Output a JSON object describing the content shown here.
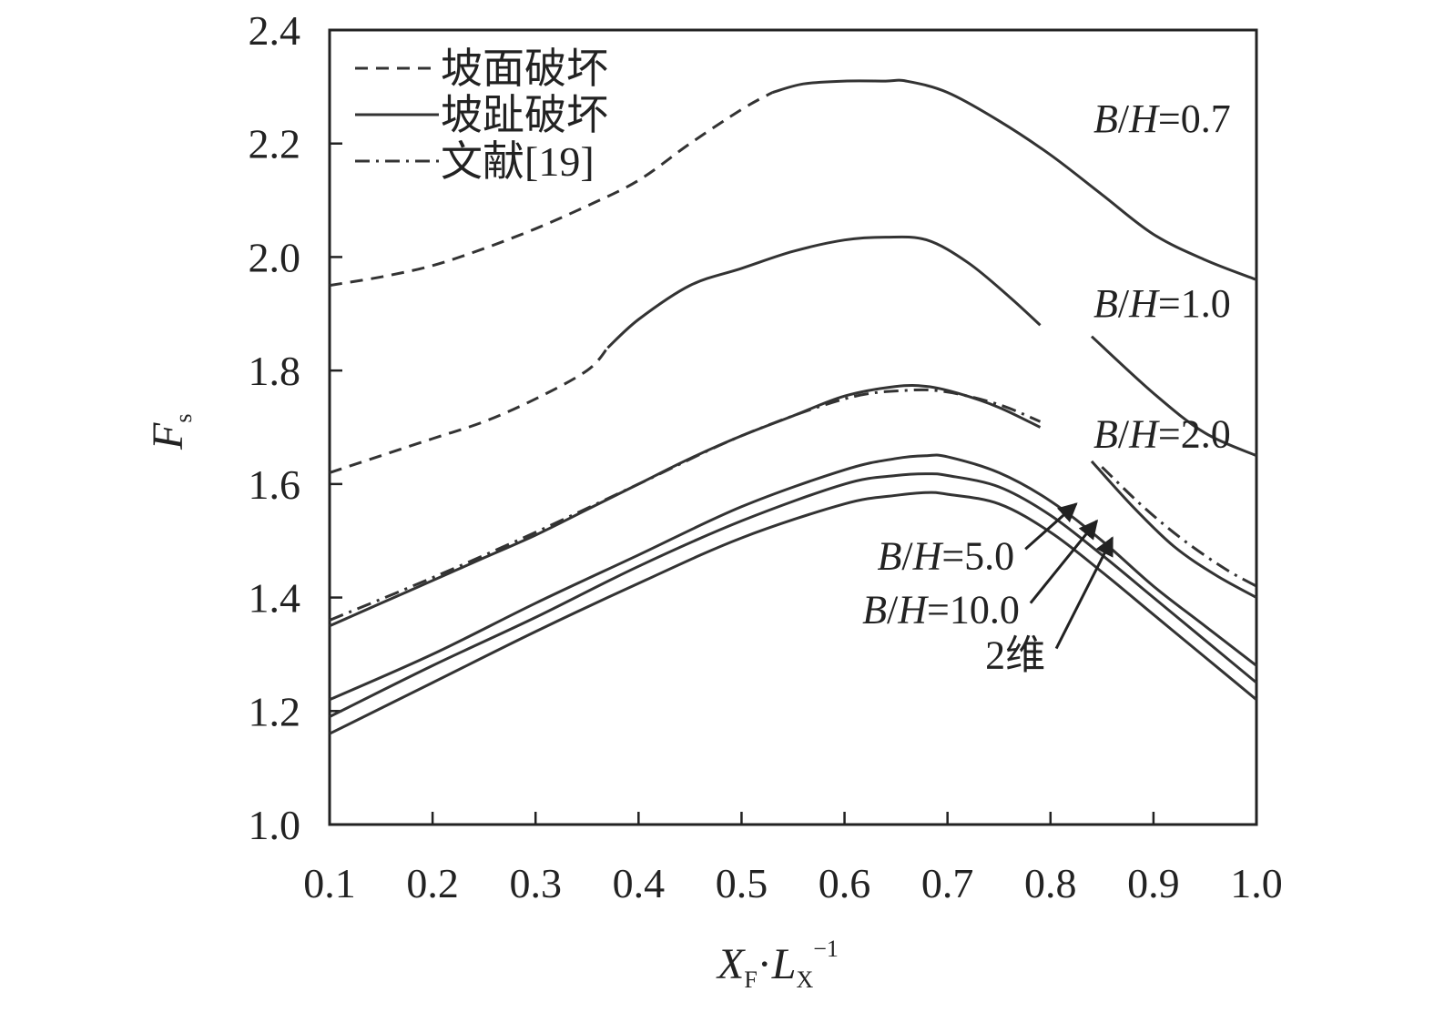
{
  "chart_data": {
    "type": "line",
    "xlabel": {
      "main1": "X",
      "sub1": "F",
      "dot": "·",
      "main2": "L",
      "sub2": "X",
      "sup": "−1"
    },
    "ylabel": {
      "main": "F",
      "sub": "s"
    },
    "xlim": [
      0.1,
      1.0
    ],
    "ylim": [
      1.0,
      2.4
    ],
    "xticks": [
      "0.1",
      "0.2",
      "0.3",
      "0.4",
      "0.5",
      "0.6",
      "0.7",
      "0.8",
      "0.9",
      "1.0"
    ],
    "yticks": [
      "1.0",
      "1.2",
      "1.4",
      "1.6",
      "1.8",
      "2.0",
      "2.2",
      "2.4"
    ],
    "grid": false,
    "legend": {
      "position": "top-left",
      "entries": [
        {
          "label": "坡面破坏",
          "style": "dashed"
        },
        {
          "label": "坡趾破坏",
          "style": "solid"
        },
        {
          "label": "文献[19]",
          "style": "dashdot"
        }
      ]
    },
    "colors": {
      "line": "#333333",
      "axis": "#222222"
    },
    "series": [
      {
        "name": "B/H=0.7",
        "segments": [
          {
            "style": "dashed",
            "x": [
              0.1,
              0.15,
              0.2,
              0.25,
              0.3,
              0.35,
              0.4,
              0.45,
              0.5,
              0.53
            ],
            "y": [
              1.95,
              1.965,
              1.985,
              2.015,
              2.05,
              2.09,
              2.135,
              2.2,
              2.26,
              2.29
            ]
          },
          {
            "style": "solid",
            "x": [
              0.53,
              0.56,
              0.6,
              0.64,
              0.66,
              0.7,
              0.75,
              0.8,
              0.85,
              0.9,
              0.95,
              1.0
            ],
            "y": [
              2.29,
              2.305,
              2.31,
              2.31,
              2.31,
              2.29,
              2.24,
              2.18,
              2.11,
              2.04,
              1.995,
              1.96
            ]
          }
        ]
      },
      {
        "name": "B/H=1.0",
        "segments": [
          {
            "style": "dashed",
            "x": [
              0.1,
              0.15,
              0.2,
              0.25,
              0.3,
              0.35,
              0.37
            ],
            "y": [
              1.62,
              1.65,
              1.68,
              1.71,
              1.75,
              1.8,
              1.84
            ]
          },
          {
            "style": "solid",
            "x": [
              0.37,
              0.4,
              0.45,
              0.5,
              0.55,
              0.6,
              0.64,
              0.68,
              0.72,
              0.76,
              0.79
            ],
            "y": [
              1.84,
              1.89,
              1.95,
              1.98,
              2.01,
              2.03,
              2.035,
              2.03,
              1.99,
              1.93,
              1.88
            ]
          },
          {
            "style": "solid",
            "x": [
              0.84,
              0.9,
              0.95,
              1.0
            ],
            "y": [
              1.86,
              1.76,
              1.69,
              1.65
            ]
          }
        ]
      },
      {
        "name": "B/H=2.0",
        "segments": [
          {
            "style": "solid",
            "x": [
              0.1,
              0.15,
              0.2,
              0.25,
              0.3,
              0.35,
              0.4,
              0.45,
              0.5,
              0.55,
              0.6,
              0.65,
              0.68,
              0.71,
              0.75,
              0.79
            ],
            "y": [
              1.35,
              1.39,
              1.43,
              1.47,
              1.51,
              1.555,
              1.6,
              1.645,
              1.685,
              1.72,
              1.755,
              1.772,
              1.772,
              1.76,
              1.735,
              1.7
            ]
          },
          {
            "style": "solid",
            "x": [
              0.84,
              0.88,
              0.92,
              0.96,
              1.0
            ],
            "y": [
              1.64,
              1.56,
              1.49,
              1.44,
              1.4
            ]
          }
        ]
      },
      {
        "name": "文献[19]",
        "segments": [
          {
            "style": "dashdot",
            "x": [
              0.1,
              0.2,
              0.3,
              0.4,
              0.5,
              0.6,
              0.66,
              0.7,
              0.75,
              0.79
            ],
            "y": [
              1.36,
              1.435,
              1.515,
              1.6,
              1.685,
              1.75,
              1.765,
              1.762,
              1.74,
              1.71
            ]
          },
          {
            "style": "dashdot",
            "x": [
              0.85,
              0.89,
              0.93,
              0.97,
              1.0
            ],
            "y": [
              1.63,
              1.56,
              1.5,
              1.45,
              1.42
            ]
          }
        ]
      },
      {
        "name": "B/H=5.0",
        "segments": [
          {
            "style": "solid",
            "x": [
              0.1,
              0.2,
              0.3,
              0.4,
              0.5,
              0.6,
              0.65,
              0.68,
              0.7,
              0.75,
              0.8,
              0.85,
              0.9,
              0.95,
              1.0
            ],
            "y": [
              1.22,
              1.3,
              1.39,
              1.475,
              1.56,
              1.625,
              1.645,
              1.65,
              1.648,
              1.62,
              1.57,
              1.5,
              1.42,
              1.35,
              1.28
            ]
          }
        ]
      },
      {
        "name": "B/H=10.0",
        "segments": [
          {
            "style": "solid",
            "x": [
              0.1,
              0.2,
              0.3,
              0.4,
              0.5,
              0.6,
              0.65,
              0.68,
              0.7,
              0.75,
              0.8,
              0.85,
              0.9,
              0.95,
              1.0
            ],
            "y": [
              1.19,
              1.28,
              1.365,
              1.455,
              1.535,
              1.6,
              1.615,
              1.618,
              1.615,
              1.595,
              1.545,
              1.475,
              1.4,
              1.325,
              1.25
            ]
          }
        ]
      },
      {
        "name": "2维",
        "segments": [
          {
            "style": "solid",
            "x": [
              0.1,
              0.2,
              0.3,
              0.4,
              0.5,
              0.6,
              0.65,
              0.68,
              0.7,
              0.75,
              0.8,
              0.85,
              0.9,
              0.95,
              1.0
            ],
            "y": [
              1.16,
              1.25,
              1.34,
              1.425,
              1.505,
              1.565,
              1.58,
              1.585,
              1.582,
              1.565,
              1.515,
              1.445,
              1.37,
              1.295,
              1.22
            ]
          }
        ]
      }
    ],
    "annotations": [
      {
        "text": "B/H=0.7",
        "x": 0.975,
        "y": 2.22
      },
      {
        "text": "B/H=1.0",
        "x": 0.975,
        "y": 1.895
      },
      {
        "text": "B/H=2.0",
        "x": 0.975,
        "y": 1.665
      },
      {
        "text": "B/H=5.0",
        "x": 0.765,
        "y": 1.45,
        "arrow_to": [
          0.825,
          1.565
        ]
      },
      {
        "text": "B/H=10.0",
        "x": 0.77,
        "y": 1.355,
        "arrow_to": [
          0.845,
          1.535
        ]
      },
      {
        "text": "2维",
        "x": 0.795,
        "y": 1.275,
        "arrow_to": [
          0.86,
          1.505
        ]
      }
    ]
  }
}
